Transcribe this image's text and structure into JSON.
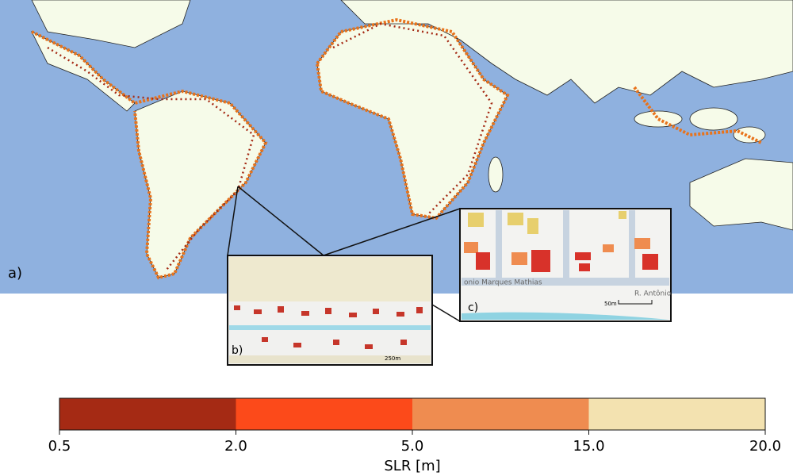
{
  "map": {
    "panel_label": "a)"
  },
  "inset_b": {
    "label": "b)",
    "scale": "250m"
  },
  "inset_c": {
    "label": "c)",
    "scale": "50m",
    "street_main": "onio Marques Mathias",
    "street_side": "R. Antônio"
  },
  "colorbar": {
    "label": "SLR [m]",
    "colors": [
      "#a52a14",
      "#fc4a1a",
      "#ef8c50",
      "#f3e2b0"
    ],
    "ticks": [
      0.5,
      {
        "value": 2,
        "label": "2.0"
      },
      {
        "value": 5,
        "label": "5.0"
      },
      {
        "value": 15,
        "label": "15.0"
      },
      {
        "value": 20,
        "label": "20.0"
      }
    ]
  }
}
